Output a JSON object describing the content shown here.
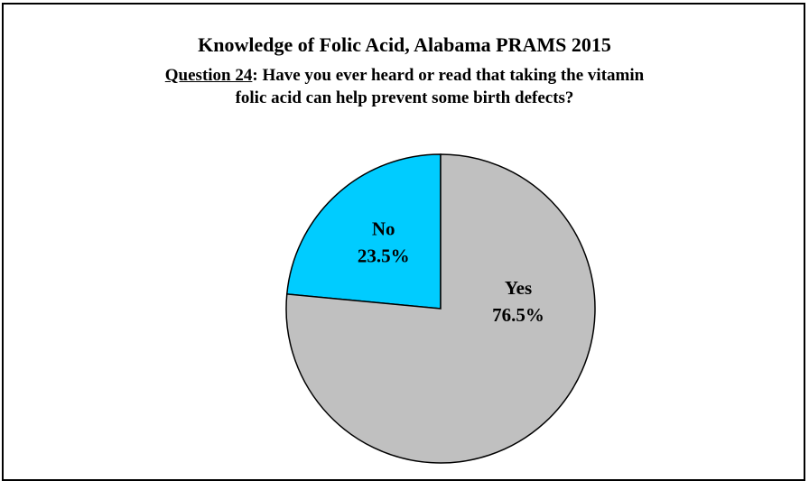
{
  "chart_data": {
    "type": "pie",
    "title": "Knowledge of Folic Acid, Alabama PRAMS 2015",
    "subtitle": {
      "label": "Question 24",
      "separator": ":",
      "line1": " Have you ever heard or read that taking the vitamin",
      "line2": "folic acid can help prevent some birth defects?"
    },
    "slices": [
      {
        "label": "No",
        "value": 23.5,
        "value_label": "23.5%",
        "color": "#00CCFF"
      },
      {
        "label": "Yes",
        "value": 76.5,
        "value_label": "76.5%",
        "color": "#C0C0C0"
      }
    ],
    "start_angle_deg": 0,
    "direction": "counterclockwise",
    "legend": "none"
  }
}
